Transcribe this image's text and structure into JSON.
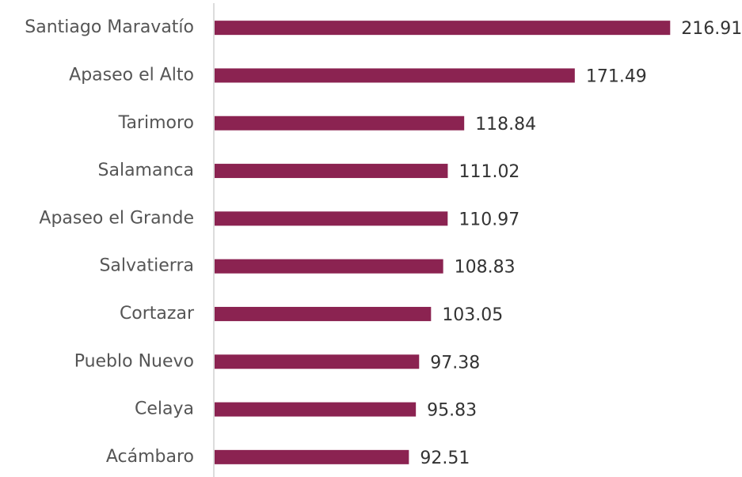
{
  "chart_data": {
    "type": "bar",
    "orientation": "horizontal",
    "categories": [
      "Santiago Maravatío",
      "Apaseo el Alto",
      "Tarimoro",
      "Salamanca",
      "Apaseo el Grande",
      "Salvatierra",
      "Cortazar",
      "Pueblo Nuevo",
      "Celaya",
      "Acámbaro"
    ],
    "values": [
      216.91,
      171.49,
      118.84,
      111.02,
      110.97,
      108.83,
      103.05,
      97.38,
      95.83,
      92.51
    ],
    "color": "#8b2351",
    "xlim": [
      0,
      220
    ],
    "grid": false
  }
}
